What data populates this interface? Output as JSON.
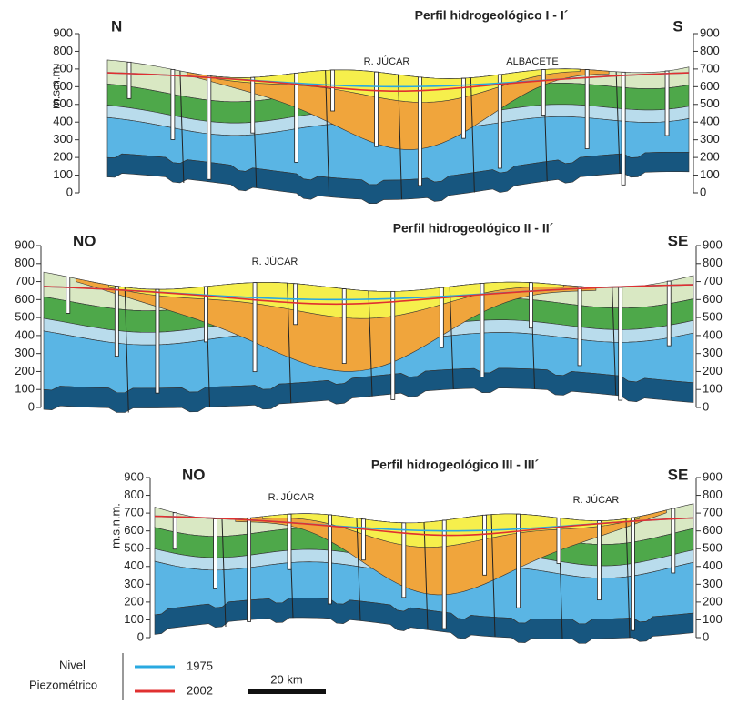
{
  "y_axis_label": "m.s.n.m.",
  "panels": [
    {
      "title": "Perfil hidrogeológico I - I´",
      "left": "N",
      "right": "S",
      "labels": [
        "R. JÚCAR",
        "ALBACETE"
      ],
      "yticks": [
        900,
        800,
        700,
        600,
        500,
        400,
        300,
        200,
        100,
        0
      ],
      "axis_label": true
    },
    {
      "title": "Perfil hidrogeológico II - II´",
      "left": "NO",
      "right": "SE",
      "labels": [
        "R. JÚCAR"
      ],
      "yticks": [
        900,
        800,
        700,
        600,
        500,
        400,
        300,
        200,
        100,
        0
      ],
      "axis_label": false
    },
    {
      "title": "Perfil hidrogeológico III - III´",
      "left": "NO",
      "right": "SE",
      "labels": [
        "R. JÚCAR",
        "R. JÚCAR"
      ],
      "yticks": [
        900,
        800,
        700,
        600,
        500,
        400,
        300,
        200,
        100,
        0
      ],
      "axis_label": true
    }
  ],
  "legend": {
    "title_lines": [
      "Nivel",
      "Piezométrico"
    ],
    "items": [
      "1975",
      "2002"
    ]
  },
  "scale": "20 km"
}
